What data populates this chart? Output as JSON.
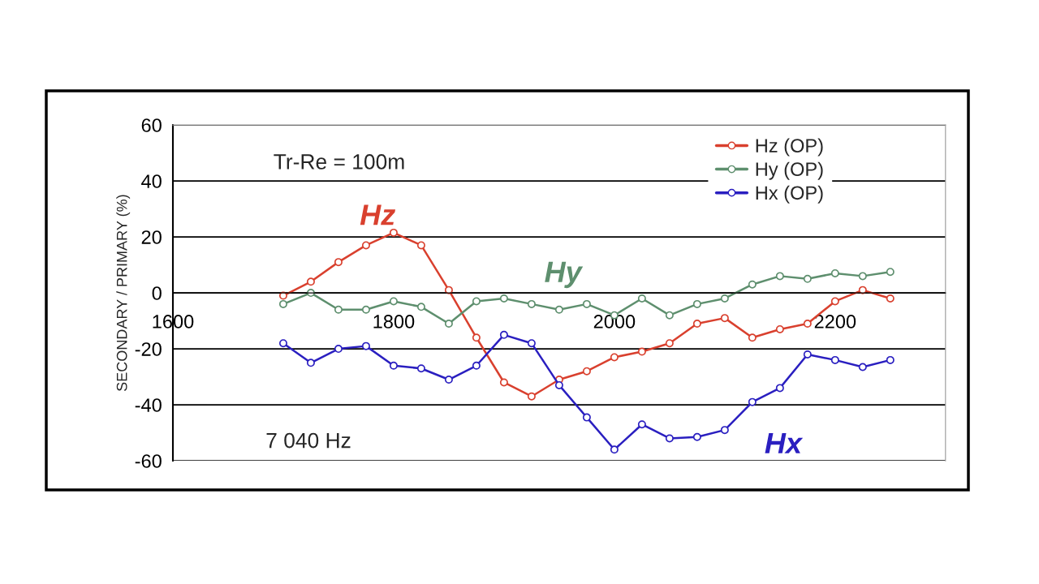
{
  "chart_data": {
    "type": "line",
    "ylabel": "SECONDARY / PRIMARY (%)",
    "x": [
      1700,
      1725,
      1750,
      1775,
      1800,
      1825,
      1850,
      1875,
      1900,
      1925,
      1950,
      1975,
      2000,
      2025,
      2050,
      2075,
      2100,
      2125,
      2150,
      2175,
      2200,
      2225,
      2250
    ],
    "series": [
      {
        "name": "Hz (OP)",
        "color": "#d9402e",
        "values": [
          -1,
          4,
          11,
          17,
          21.5,
          17,
          1,
          -16,
          -32,
          -37,
          -31,
          -28,
          -23,
          -21,
          -18,
          -11,
          -9,
          -16,
          -13,
          -11,
          -3,
          1,
          -2
        ]
      },
      {
        "name": "Hy (OP)",
        "color": "#5e8f6e",
        "values": [
          -4,
          0,
          -6,
          -6,
          -3,
          -5,
          -11,
          -3,
          -2,
          -4,
          -6,
          -4,
          -8,
          -2,
          -8,
          -4,
          -2,
          3,
          6,
          5,
          7,
          6,
          7.5
        ]
      },
      {
        "name": "Hx (OP)",
        "color": "#2a1fc0",
        "values": [
          -18,
          -25,
          -20,
          -19,
          -26,
          -27,
          -31,
          -26,
          -15,
          -18,
          -33,
          -44.5,
          -56,
          -47,
          -52,
          -51.5,
          -49,
          -39,
          -34,
          -22,
          -24,
          -26.5,
          -24
        ]
      }
    ],
    "xlim": [
      1600,
      2300
    ],
    "xticks": [
      1600,
      1800,
      2000,
      2200
    ],
    "ylim": [
      -60,
      60
    ],
    "yticks": [
      -60,
      -40,
      -20,
      0,
      20,
      40,
      60
    ],
    "grid": "y",
    "legend": "top right",
    "marker": "circle",
    "line_style": "solid",
    "annotations": [
      "Tr-Re = 100m",
      "7 040 Hz",
      "Hz",
      "Hy",
      "Hx"
    ]
  }
}
